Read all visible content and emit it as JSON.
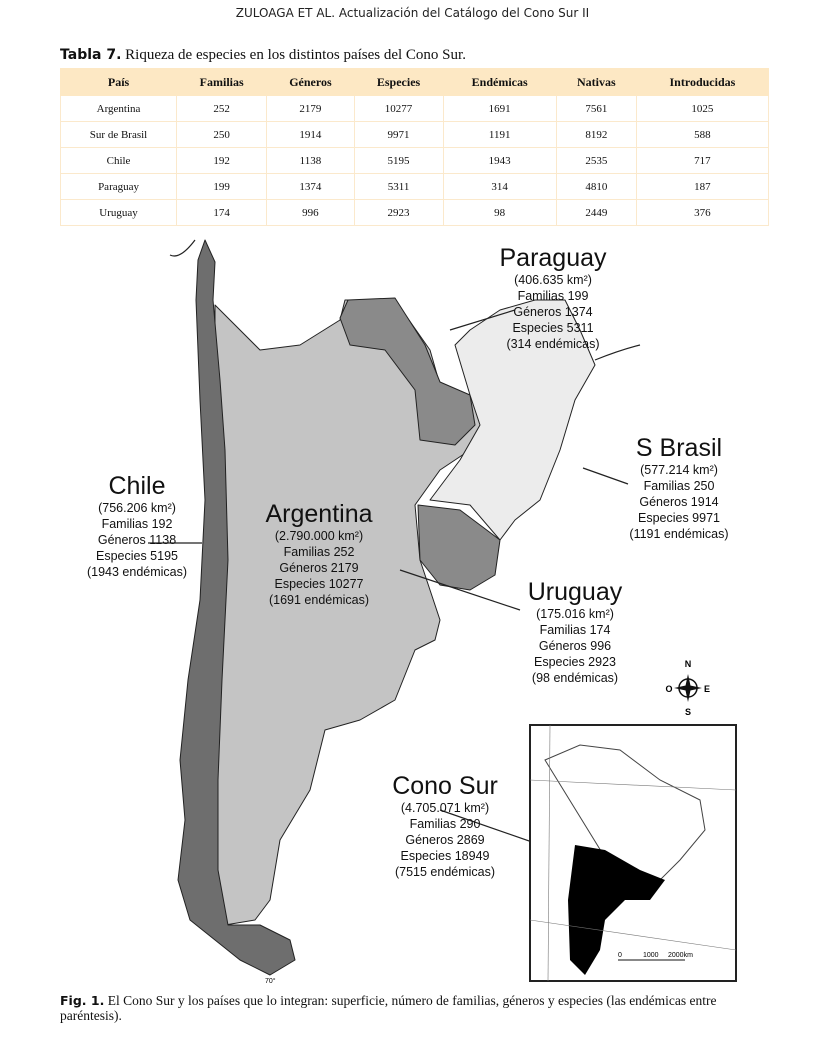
{
  "running_head": "ZULOAGA ET AL. Actualización del Catálogo del Cono Sur II",
  "table": {
    "label": "Tabla 7.",
    "caption": "Riqueza de especies en los distintos países del Cono Sur.",
    "headers": [
      "País",
      "Familias",
      "Géneros",
      "Especies",
      "Endémicas",
      "Nativas",
      "Introducidas"
    ],
    "rows": [
      [
        "Argentina",
        "252",
        "2179",
        "10277",
        "1691",
        "7561",
        "1025"
      ],
      [
        "Sur de Brasil",
        "250",
        "1914",
        "9971",
        "1191",
        "8192",
        "588"
      ],
      [
        "Chile",
        "192",
        "1138",
        "5195",
        "1943",
        "2535",
        "717"
      ],
      [
        "Paraguay",
        "199",
        "1374",
        "5311",
        "314",
        "4810",
        "187"
      ],
      [
        "Uruguay",
        "174",
        "996",
        "2923",
        "98",
        "2449",
        "376"
      ]
    ]
  },
  "map": {
    "regions": {
      "paraguay": {
        "name": "Paraguay",
        "area": "(406.635 km²)",
        "familias": "Familias 199",
        "generos": "Géneros 1374",
        "especies": "Especies 5311",
        "endemicas": "(314 endémicas)"
      },
      "brasil": {
        "name": "S Brasil",
        "area": "(577.214 km²)",
        "familias": "Familias 250",
        "generos": "Géneros 1914",
        "especies": "Especies 9971",
        "endemicas": "(1191 endémicas)"
      },
      "chile": {
        "name": "Chile",
        "area": "(756.206 km²)",
        "familias": "Familias 192",
        "generos": "Géneros 1138",
        "especies": "Especies 5195",
        "endemicas": "(1943 endémicas)"
      },
      "argentina": {
        "name": "Argentina",
        "area": "(2.790.000 km²)",
        "familias": "Familias 252",
        "generos": "Géneros 2179",
        "especies": "Especies 10277",
        "endemicas": "(1691 endémicas)"
      },
      "uruguay": {
        "name": "Uruguay",
        "area": "(175.016 km²)",
        "familias": "Familias 174",
        "generos": "Géneros 996",
        "especies": "Especies 2923",
        "endemicas": "(98 endémicas)"
      },
      "conosur": {
        "name": "Cono Sur",
        "area": "(4.705.071 km²)",
        "familias": "Familias 290",
        "generos": "Géneros 2869",
        "especies": "Especies 18949",
        "endemicas": "(7515 endémicas)"
      }
    },
    "compass": {
      "n": "N",
      "s": "S",
      "e": "E",
      "o": "O"
    },
    "scale": {
      "zero": "0",
      "mid": "1000",
      "end": "2000km"
    },
    "meridian": "70°",
    "colors": {
      "chile": "#6e6e6e",
      "argentina": "#c4c4c4",
      "paraguay": "#8a8a8a",
      "uruguay": "#8a8a8a",
      "brasil": "#ececec"
    }
  },
  "figure": {
    "label": "Fig. 1.",
    "caption": "El Cono Sur y los países que lo integran: superficie, número de familias, géneros y especies (las endémicas entre paréntesis)."
  }
}
